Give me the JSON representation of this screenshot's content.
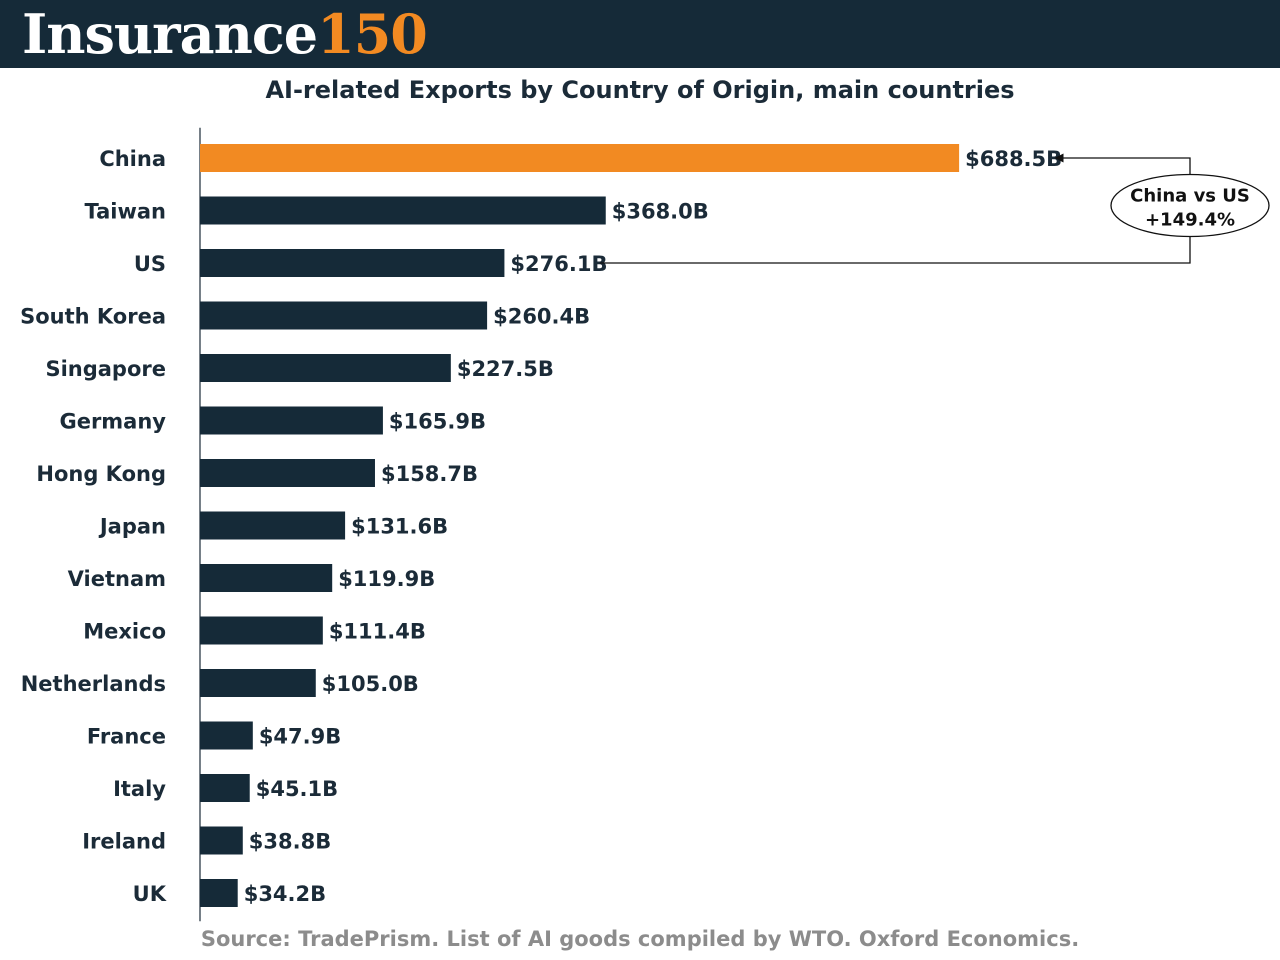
{
  "header": {
    "logo_word": "Insurance",
    "logo_number": "150"
  },
  "colors": {
    "highlight": "#f28a22",
    "bar": "#152a38",
    "header_bg": "#152a38",
    "source_text": "#8c8c8c"
  },
  "chart_data": {
    "type": "bar",
    "orientation": "horizontal",
    "title": "AI-related Exports by Country of Origin, main countries",
    "xlabel": "",
    "ylabel": "",
    "xlim": [
      0,
      780
    ],
    "unit_prefix": "$",
    "unit_suffix": "B",
    "categories": [
      "China",
      "Taiwan",
      "US",
      "South Korea",
      "Singapore",
      "Germany",
      "Hong Kong",
      "Japan",
      "Vietnam",
      "Mexico",
      "Netherlands",
      "France",
      "Italy",
      "Ireland",
      "UK"
    ],
    "values": [
      688.5,
      368.0,
      276.1,
      260.4,
      227.5,
      165.9,
      158.7,
      131.6,
      119.9,
      111.4,
      105.0,
      47.9,
      45.1,
      38.8,
      34.2
    ],
    "labels": [
      "$688.5B",
      "$368.0B",
      "$276.1B",
      "$260.4B",
      "$227.5B",
      "$165.9B",
      "$158.7B",
      "$131.6B",
      "$119.9B",
      "$111.4B",
      "$105.0B",
      "$47.9B",
      "$45.1B",
      "$38.8B",
      "$34.2B"
    ],
    "highlight_category": "China",
    "annotation": {
      "from": "US",
      "to": "China",
      "line1": "China vs US",
      "line2": "+149.4%"
    }
  },
  "source": "Source: TradePrism. List of AI goods compiled by WTO. Oxford Economics."
}
